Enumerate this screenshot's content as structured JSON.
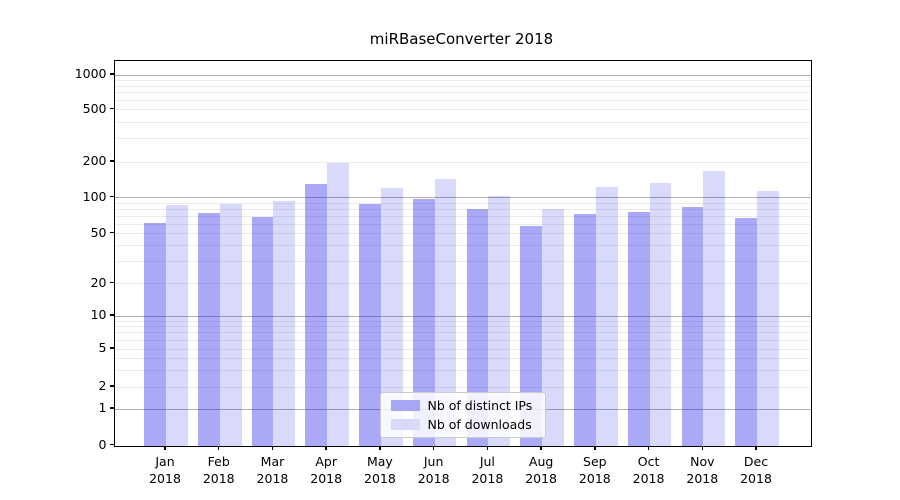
{
  "chart_data": {
    "type": "bar",
    "title": "miRBaseConverter 2018",
    "xlabel": "",
    "ylabel": "",
    "year_label": "2018",
    "categories": [
      "Jan",
      "Feb",
      "Mar",
      "Apr",
      "May",
      "Jun",
      "Jul",
      "Aug",
      "Sep",
      "Oct",
      "Nov",
      "Dec"
    ],
    "series": [
      {
        "name": "Nb of distinct IPs",
        "color": "rgba(30,30,235,0.38)",
        "values": [
          62,
          75,
          69,
          131,
          89,
          97,
          80,
          58,
          73,
          76,
          84,
          68
        ]
      },
      {
        "name": "Nb of downloads",
        "color": "rgba(30,30,235,0.17)",
        "values": [
          87,
          88,
          93,
          195,
          120,
          145,
          103,
          80,
          123,
          134,
          168,
          115
        ]
      }
    ],
    "yscale": "log-like (linear below 1)",
    "yticks": [
      0,
      1,
      2,
      5,
      10,
      20,
      50,
      100,
      200,
      500,
      1000
    ],
    "ytick_labels": [
      "0",
      "1",
      "2",
      "5",
      "10",
      "20",
      "50",
      "100",
      "200",
      "500",
      "1000"
    ],
    "ylim": [
      0,
      1400
    ],
    "grid": true,
    "legend_position": "lower-center",
    "colors": {
      "major_grid": "#b0b0b0",
      "minor_grid": "#ebebeb",
      "axis": "#000000",
      "bar_ips_flat": "#a6a6f7",
      "bar_downloads_flat": "#d9d9fa"
    }
  }
}
